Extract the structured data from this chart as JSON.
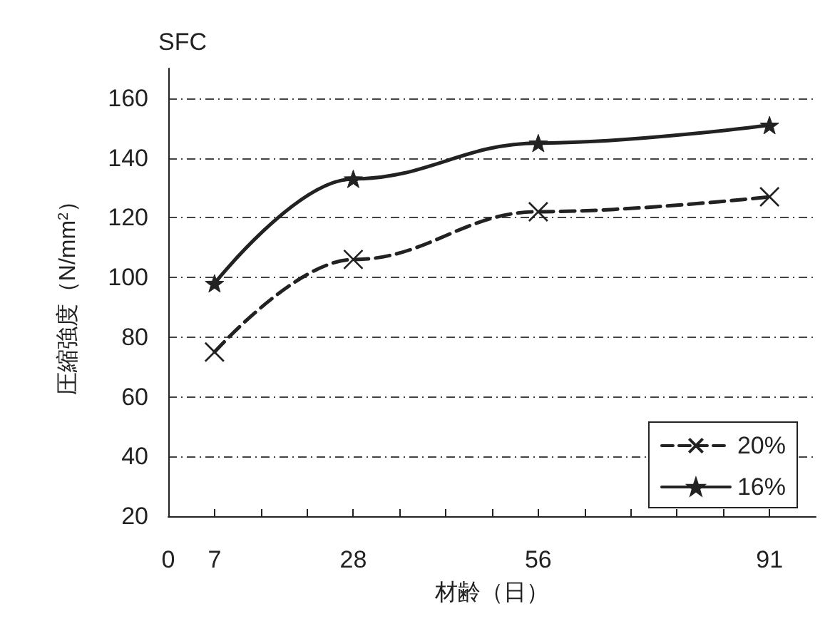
{
  "chart_data": {
    "type": "line",
    "title": "SFC",
    "xlabel": "材齢（日）",
    "ylabel": "圧縮強度（N/mm$^{2}$）",
    "x": [
      7,
      28,
      56,
      91
    ],
    "series": [
      {
        "name": "20%",
        "color": "#222222",
        "values": [
          75,
          106,
          122,
          127
        ],
        "line_style": "dashed",
        "marker": "cross"
      },
      {
        "name": "16%",
        "color": "#222222",
        "values": [
          98,
          133,
          145,
          151
        ],
        "line_style": "solid",
        "marker": "star"
      }
    ],
    "xlim": [
      0,
      98
    ],
    "xticks": [
      0,
      7,
      {
        "value": 14,
        "label": null
      },
      {
        "value": 21,
        "label": null
      },
      28,
      {
        "value": 35,
        "label": null
      },
      {
        "value": 42,
        "label": null
      },
      {
        "value": 49,
        "label": null
      },
      56,
      {
        "value": 63,
        "label": null
      },
      {
        "value": 70,
        "label": null
      },
      {
        "value": 77,
        "label": null
      },
      {
        "value": 84,
        "label": null
      },
      91
    ],
    "ylim": [
      20,
      170
    ],
    "yticks": [
      20,
      40,
      60,
      80,
      100,
      120,
      140,
      160
    ],
    "grid": "y",
    "legend": "bottom right"
  }
}
